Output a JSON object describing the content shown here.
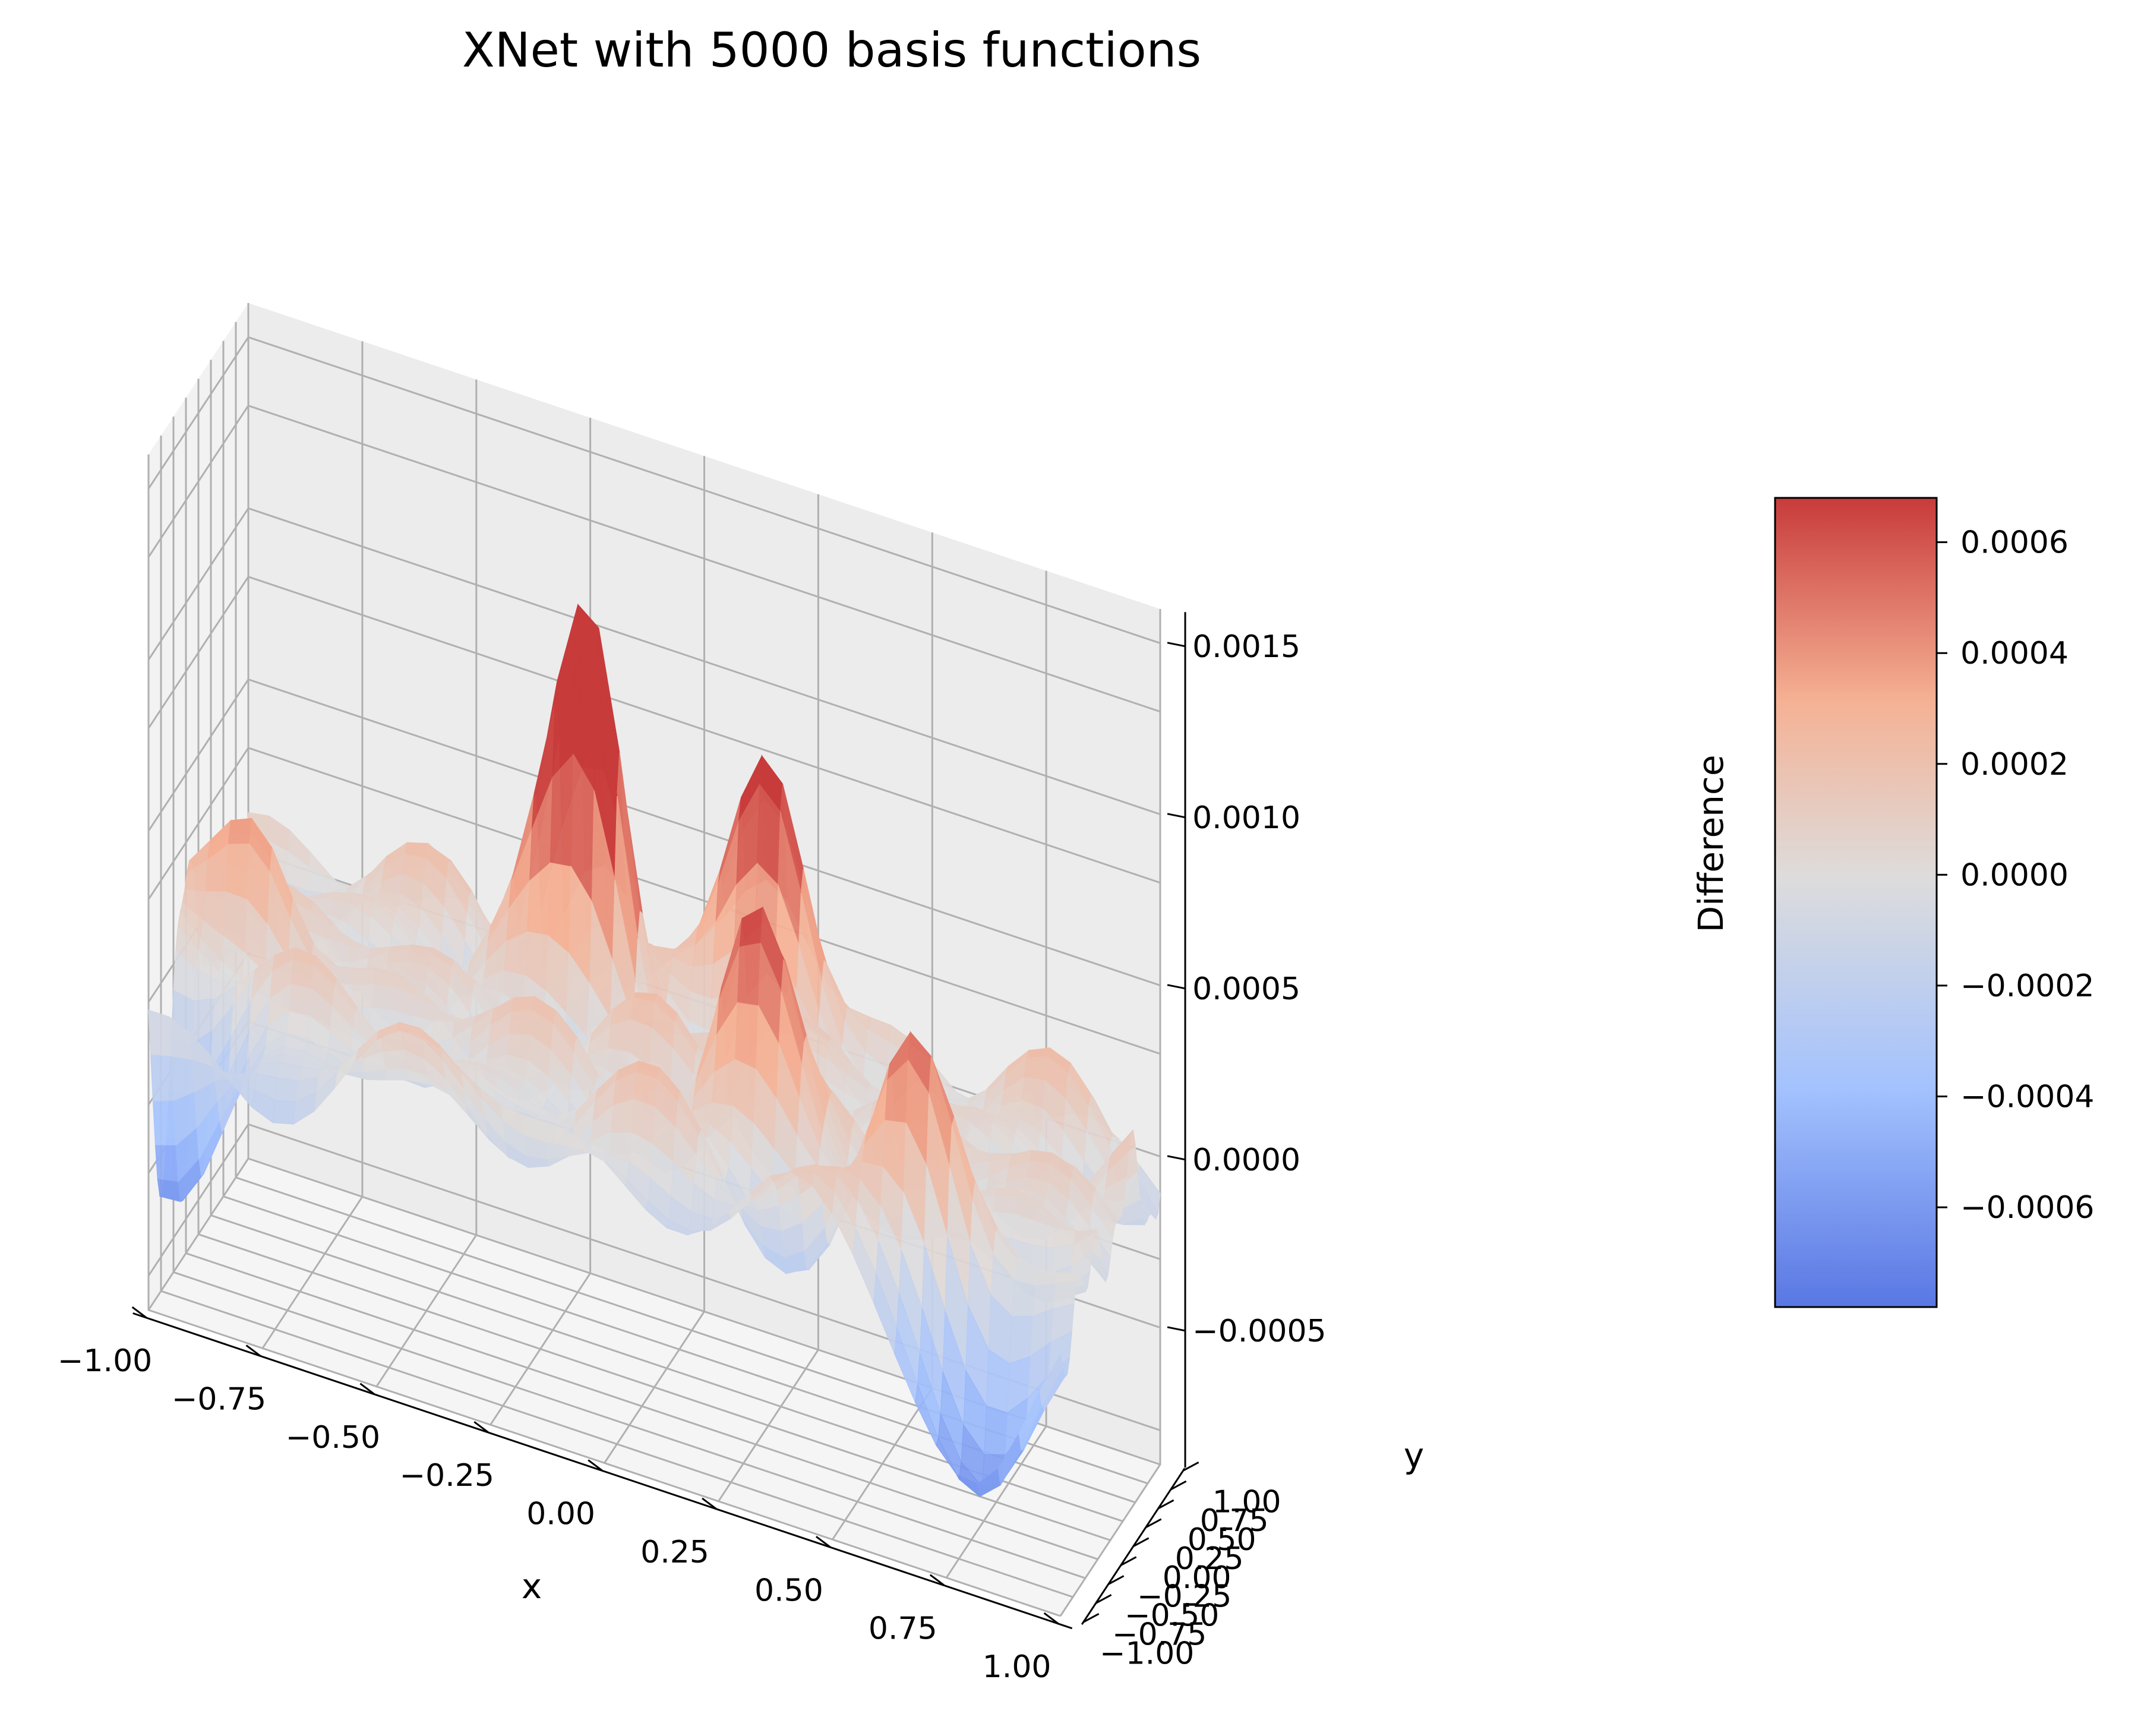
{
  "chart_data": {
    "type": "surface3d",
    "title": "XNet with 5000 basis functions",
    "xlabel": "x",
    "ylabel": "y",
    "zlabel": "",
    "x_ticks": [
      "−1.00",
      "−0.75",
      "−0.50",
      "−0.25",
      "0.00",
      "0.25",
      "0.50",
      "0.75",
      "1.00"
    ],
    "y_ticks": [
      "−1.00",
      "−0.75",
      "−0.50",
      "−0.25",
      "0.00",
      "0.25",
      "0.50",
      "0.75",
      "1.00"
    ],
    "z_ticks": [
      "−0.0005",
      "0.0000",
      "0.0005",
      "0.0010",
      "0.0015"
    ],
    "x_range": [
      -1,
      1
    ],
    "y_range": [
      -1,
      1
    ],
    "z_range": [
      -0.0009,
      0.0016
    ],
    "grid": true,
    "colormap": "coolwarm",
    "colorbar": {
      "label": "Difference",
      "range": [
        -0.00078,
        0.00068
      ],
      "ticks": [
        "−0.0006",
        "−0.0004",
        "−0.0002",
        "0.0000",
        "0.0002",
        "0.0004",
        "0.0006"
      ],
      "colors": [
        "#5977e3",
        "#a3c2fe",
        "#dddcdc",
        "#f5b194",
        "#c83b3b"
      ]
    },
    "notable_features": [
      {
        "x": -0.85,
        "y": -0.2,
        "z": 0.00045,
        "kind": "peak"
      },
      {
        "x": -0.2,
        "y": 0.55,
        "z": 0.0011,
        "kind": "peak"
      },
      {
        "x": 0.15,
        "y": 0.9,
        "z": 0.0009,
        "kind": "peak"
      },
      {
        "x": 0.25,
        "y": -0.3,
        "z": 0.0006,
        "kind": "peak"
      },
      {
        "x": 0.65,
        "y": -0.7,
        "z": 0.0005,
        "kind": "peak"
      },
      {
        "x": -0.95,
        "y": -0.8,
        "z": -0.0006,
        "kind": "trough"
      },
      {
        "x": 0.85,
        "y": -0.95,
        "z": -0.0007,
        "kind": "trough"
      }
    ]
  }
}
